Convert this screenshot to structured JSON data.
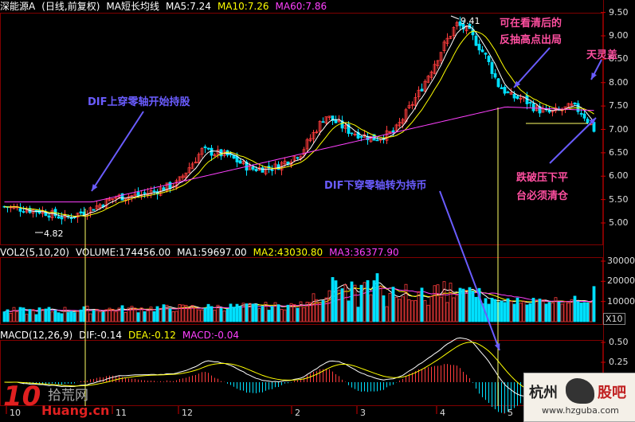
{
  "main_header": {
    "title": "深能源A",
    "mode": "(日线,前复权)",
    "indicator": "MA短长均线",
    "ma5": "MA5:7.24",
    "ma10": "MA10:7.26",
    "ma60": "MA60:7.86"
  },
  "vol_header": {
    "name": "VOL2(5,10,20)",
    "volume": "VOLUME:174456.00",
    "ma1": "MA1:59697.00",
    "ma2": "MA2:43030.80",
    "ma3": "MA3:36377.90"
  },
  "macd_header": {
    "name": "MACD(12,26,9)",
    "dif": "DIF:-0.14",
    "dea": "DEA:-0.12",
    "macd": "MACD:-0.04"
  },
  "annotations": {
    "high": "9.41",
    "low": "4.82",
    "dif_up": "DIF上穿零轴开始持股",
    "dif_down": "DIF下穿零轴转为持币",
    "sell_high_1": "可在看清后的",
    "sell_high_2": "反抽高点出局",
    "tianling": "天灵盖",
    "break_1": "跌破压下平",
    "break_2": "台必须清仓"
  },
  "price_axis": [
    "9.50",
    "9.00",
    "8.50",
    "8.00",
    "7.50",
    "7.00",
    "6.50",
    "6.00",
    "5.50",
    "5.00"
  ],
  "volume_axis": [
    "30000",
    "20000",
    "10000"
  ],
  "volume_unit": "X10",
  "macd_axis": [
    "0.50",
    "0.25"
  ],
  "time_axis": [
    "10",
    "11",
    "12",
    "2",
    "3",
    "4",
    "5"
  ],
  "watermark_left": {
    "brand": "10",
    "cn": "拾荒网",
    "url": "Huang.cn"
  },
  "watermark_right": {
    "cn1": "杭州",
    "cn2": "股吧",
    "url": "www.hzguba.com"
  },
  "colors": {
    "up": "#ff3c3c",
    "down": "#00e0ff",
    "ma5": "#ffffff",
    "ma10": "#ffff00",
    "ma60": "#ff40ff",
    "anno_blue": "#6a5cff",
    "anno_pink": "#ff4fa0",
    "guide": "#ffff66"
  }
}
